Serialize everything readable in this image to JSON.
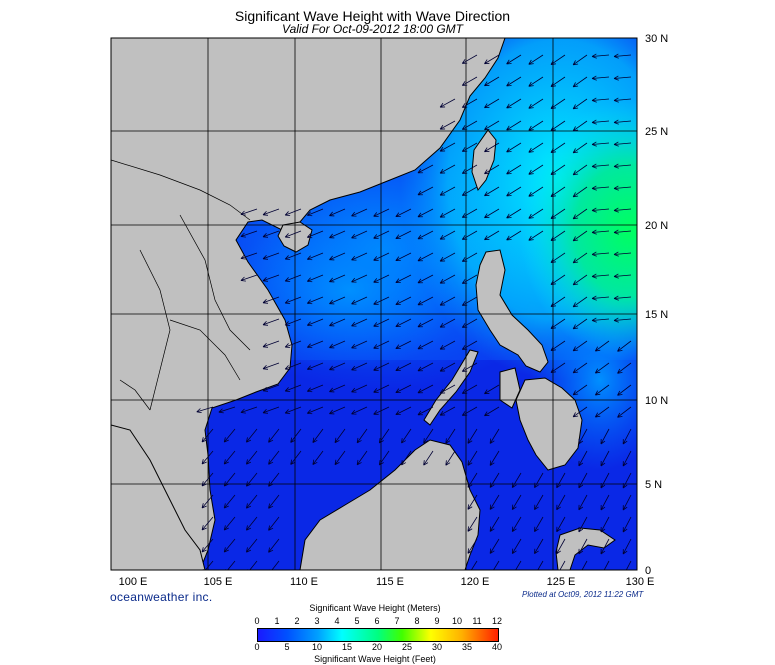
{
  "title": "Significant Wave Height with Wave Direction",
  "subtitle": "Valid For Oct-09-2012 18:00 GMT",
  "map": {
    "lon_range": [
      100,
      130
    ],
    "lat_range": [
      0,
      30
    ],
    "lon_labels": [
      "100 E",
      "105 E",
      "110 E",
      "115 E",
      "120 E",
      "125 E",
      "130 E"
    ],
    "lat_labels": [
      "30 N",
      "25 N",
      "20 N",
      "15 N",
      "10 N",
      "5 N",
      "0"
    ],
    "land_color": "#c0c0c0",
    "grid": true
  },
  "branding": "oceanweather inc.",
  "plotted": "Plotted at Oct09, 2012 11:22 GMT",
  "legend": {
    "meters_title": "Significant Wave Height (Meters)",
    "feet_title": "Significant Wave Height (Feet)",
    "meters_ticks": [
      "0",
      "1",
      "2",
      "3",
      "4",
      "5",
      "6",
      "7",
      "8",
      "9",
      "10",
      "11",
      "12"
    ],
    "feet_ticks": [
      "0",
      "5",
      "10",
      "15",
      "20",
      "25",
      "30",
      "35",
      "40"
    ],
    "colors": [
      "#1a1aff",
      "#0050ff",
      "#00a0ff",
      "#00ffff",
      "#00ff80",
      "#40ff00",
      "#ffff00",
      "#ffb000",
      "#ff2000"
    ]
  }
}
